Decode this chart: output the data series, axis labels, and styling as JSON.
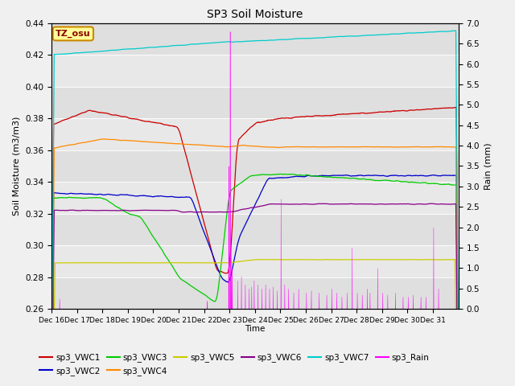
{
  "title": "SP3 Soil Moisture",
  "xlabel": "Time",
  "ylabel_left": "Soil Moisture (m3/m3)",
  "ylabel_right": "Rain (mm)",
  "annotation": "TZ_osu",
  "ylim_left": [
    0.26,
    0.44
  ],
  "ylim_right": [
    0.0,
    7.0
  ],
  "yticks_left": [
    0.26,
    0.28,
    0.3,
    0.32,
    0.34,
    0.36,
    0.38,
    0.4,
    0.42,
    0.44
  ],
  "yticks_right": [
    0.0,
    0.5,
    1.0,
    1.5,
    2.0,
    2.5,
    3.0,
    3.5,
    4.0,
    4.5,
    5.0,
    5.5,
    6.0,
    6.5,
    7.0
  ],
  "fig_bg": "#f0f0f0",
  "plot_bg": "#e8e8e8",
  "series_colors": {
    "sp3_VWC1": "#cc0000",
    "sp3_VWC2": "#0000cc",
    "sp3_VWC3": "#00cc00",
    "sp3_VWC4": "#ff8800",
    "sp3_VWC5": "#cccc00",
    "sp3_VWC6": "#880088",
    "sp3_VWC7": "#00cccc",
    "sp3_Rain": "#ff00ff"
  },
  "legend_row1": [
    {
      "label": "sp3_VWC1",
      "color": "#cc0000"
    },
    {
      "label": "sp3_VWC2",
      "color": "#0000cc"
    },
    {
      "label": "sp3_VWC3",
      "color": "#00cc00"
    },
    {
      "label": "sp3_VWC4",
      "color": "#ff8800"
    },
    {
      "label": "sp3_VWC5",
      "color": "#cccc00"
    },
    {
      "label": "sp3_VWC6",
      "color": "#880088"
    }
  ],
  "legend_row2": [
    {
      "label": "sp3_VWC7",
      "color": "#00cccc"
    },
    {
      "label": "sp3_Rain",
      "color": "#ff00ff"
    }
  ]
}
